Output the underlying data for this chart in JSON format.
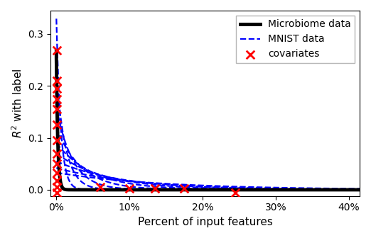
{
  "title": "",
  "xlabel": "Percent of input features",
  "ylabel": "$R^2$ with label",
  "xlim": [
    -0.008,
    0.415
  ],
  "ylim": [
    -0.012,
    0.345
  ],
  "xticks": [
    0.0,
    0.1,
    0.2,
    0.3,
    0.4
  ],
  "yticks": [
    0.0,
    0.1,
    0.2,
    0.3
  ],
  "microbiome_color": "#000000",
  "mnist_color": "#0000ff",
  "covariate_color": "#ff0000",
  "microbiome_lw": 3.5,
  "mnist_lw": 1.6,
  "legend_labels": [
    "Microbiome data",
    "MNIST data",
    "covariates"
  ],
  "mnist_peak_values": [
    0.335,
    0.22,
    0.16,
    0.12,
    0.09,
    0.07,
    0.055,
    0.042,
    0.033
  ],
  "mnist_decay_rates": [
    0.006,
    0.013,
    0.022,
    0.034,
    0.05,
    0.068,
    0.088,
    0.11,
    0.145
  ],
  "microbiome_peak": 0.267,
  "microbiome_decay": 0.002,
  "cov_x": [
    0.001,
    0.001,
    0.001,
    0.001,
    0.001,
    0.001,
    0.001,
    0.001,
    0.001,
    0.001,
    0.001,
    0.001,
    0.001,
    0.06,
    0.1,
    0.135,
    0.175,
    0.245
  ],
  "cov_y": [
    0.268,
    0.21,
    0.195,
    0.175,
    0.155,
    0.125,
    0.095,
    0.07,
    0.05,
    0.032,
    0.018,
    0.006,
    -0.005,
    0.006,
    0.003,
    0.003,
    0.002,
    -0.006
  ]
}
